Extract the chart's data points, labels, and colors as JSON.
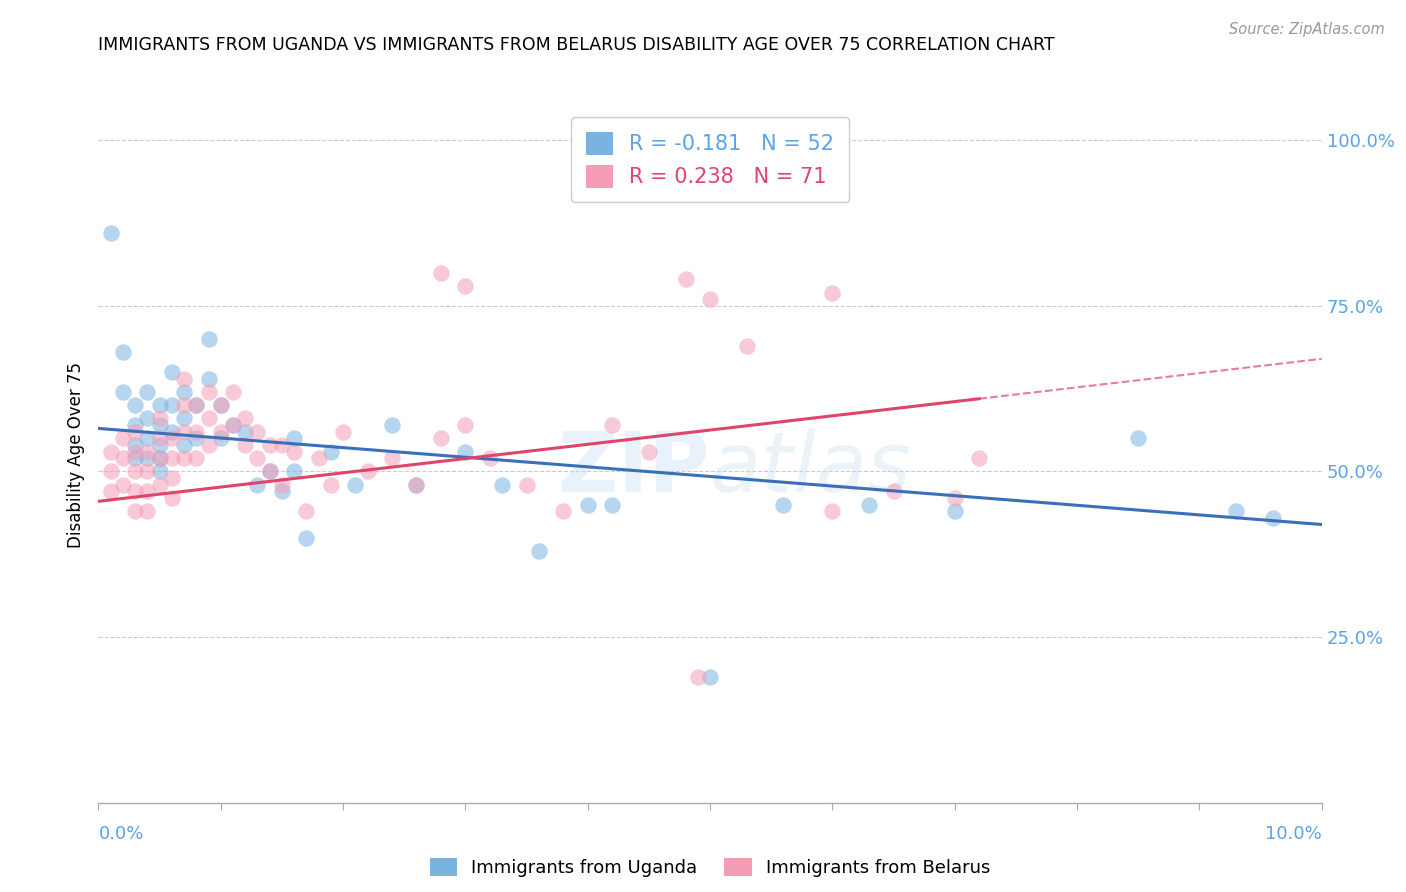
{
  "title": "IMMIGRANTS FROM UGANDA VS IMMIGRANTS FROM BELARUS DISABILITY AGE OVER 75 CORRELATION CHART",
  "source": "Source: ZipAtlas.com",
  "ylabel": "Disability Age Over 75",
  "xlim": [
    0.0,
    0.1
  ],
  "ylim": [
    0.0,
    1.05
  ],
  "legend_R_uganda": "-0.181",
  "legend_N_uganda": "52",
  "legend_R_belarus": "0.238",
  "legend_N_belarus": "71",
  "legend_label_uganda": "Immigrants from Uganda",
  "legend_label_belarus": "Immigrants from Belarus",
  "color_uganda": "#7ab3e0",
  "color_belarus": "#f49db5",
  "color_uganda_line": "#3a6fba",
  "color_belarus_line": "#e0446a",
  "color_axis_text": "#5ba3e8",
  "uganda_x": [
    0.001,
    0.002,
    0.002,
    0.003,
    0.003,
    0.003,
    0.003,
    0.004,
    0.004,
    0.004,
    0.004,
    0.005,
    0.005,
    0.005,
    0.005,
    0.005,
    0.006,
    0.006,
    0.006,
    0.007,
    0.007,
    0.007,
    0.008,
    0.008,
    0.009,
    0.009,
    0.01,
    0.01,
    0.011,
    0.012,
    0.013,
    0.014,
    0.015,
    0.016,
    0.016,
    0.017,
    0.019,
    0.021,
    0.024,
    0.026,
    0.03,
    0.033,
    0.036,
    0.04,
    0.042,
    0.05,
    0.056,
    0.063,
    0.07,
    0.085,
    0.093,
    0.096
  ],
  "uganda_y": [
    0.86,
    0.68,
    0.62,
    0.6,
    0.57,
    0.54,
    0.52,
    0.62,
    0.58,
    0.55,
    0.52,
    0.6,
    0.57,
    0.54,
    0.52,
    0.5,
    0.65,
    0.6,
    0.56,
    0.62,
    0.58,
    0.54,
    0.6,
    0.55,
    0.7,
    0.64,
    0.6,
    0.55,
    0.57,
    0.56,
    0.48,
    0.5,
    0.47,
    0.55,
    0.5,
    0.4,
    0.53,
    0.48,
    0.57,
    0.48,
    0.53,
    0.48,
    0.38,
    0.45,
    0.45,
    0.19,
    0.45,
    0.45,
    0.44,
    0.55,
    0.44,
    0.43
  ],
  "belarus_x": [
    0.001,
    0.001,
    0.001,
    0.002,
    0.002,
    0.002,
    0.003,
    0.003,
    0.003,
    0.003,
    0.003,
    0.004,
    0.004,
    0.004,
    0.004,
    0.005,
    0.005,
    0.005,
    0.005,
    0.006,
    0.006,
    0.006,
    0.006,
    0.007,
    0.007,
    0.007,
    0.007,
    0.008,
    0.008,
    0.008,
    0.009,
    0.009,
    0.009,
    0.01,
    0.01,
    0.011,
    0.011,
    0.012,
    0.012,
    0.013,
    0.013,
    0.014,
    0.014,
    0.015,
    0.015,
    0.016,
    0.017,
    0.018,
    0.019,
    0.02,
    0.022,
    0.024,
    0.026,
    0.028,
    0.03,
    0.032,
    0.035,
    0.038,
    0.042,
    0.045,
    0.049,
    0.06,
    0.065,
    0.07,
    0.072,
    0.048,
    0.05,
    0.053,
    0.028,
    0.03,
    0.06
  ],
  "belarus_y": [
    0.53,
    0.5,
    0.47,
    0.55,
    0.52,
    0.48,
    0.56,
    0.53,
    0.5,
    0.47,
    0.44,
    0.53,
    0.5,
    0.47,
    0.44,
    0.58,
    0.55,
    0.52,
    0.48,
    0.55,
    0.52,
    0.49,
    0.46,
    0.64,
    0.6,
    0.56,
    0.52,
    0.6,
    0.56,
    0.52,
    0.62,
    0.58,
    0.54,
    0.6,
    0.56,
    0.62,
    0.57,
    0.58,
    0.54,
    0.56,
    0.52,
    0.54,
    0.5,
    0.54,
    0.48,
    0.53,
    0.44,
    0.52,
    0.48,
    0.56,
    0.5,
    0.52,
    0.48,
    0.55,
    0.57,
    0.52,
    0.48,
    0.44,
    0.57,
    0.53,
    0.19,
    0.44,
    0.47,
    0.46,
    0.52,
    0.79,
    0.76,
    0.69,
    0.8,
    0.78,
    0.77
  ]
}
